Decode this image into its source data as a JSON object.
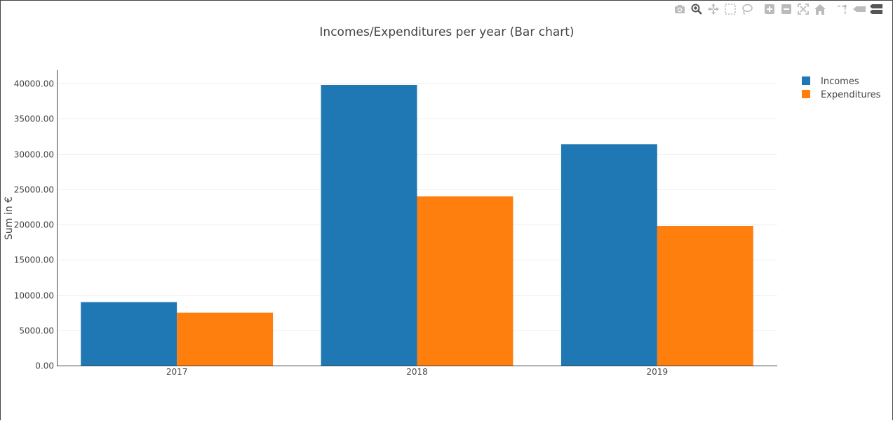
{
  "chart_data": {
    "type": "bar",
    "title": "Incomes/Expenditures per year (Bar chart)",
    "xlabel": "",
    "ylabel": "Sum in €",
    "categories": [
      "2017",
      "2018",
      "2019"
    ],
    "series": [
      {
        "name": "Incomes",
        "color": "#1f77b4",
        "values": [
          9000,
          39800,
          31400
        ]
      },
      {
        "name": "Expenditures",
        "color": "#ff7f0e",
        "values": [
          7500,
          24000,
          19800
        ]
      }
    ],
    "ylim": [
      0,
      42000
    ],
    "yticks": [
      0,
      5000,
      10000,
      15000,
      20000,
      25000,
      30000,
      35000,
      40000
    ],
    "ytick_labels": [
      "0.00",
      "5000.00",
      "10000.00",
      "15000.00",
      "20000.00",
      "25000.00",
      "30000.00",
      "35000.00",
      "40000.00"
    ],
    "grid": true,
    "legend_position": "top-right"
  },
  "modebar": [
    {
      "icon": "camera-icon"
    },
    {
      "icon": "zoom-icon"
    },
    {
      "icon": "pan-icon"
    },
    {
      "icon": "box-select-icon"
    },
    {
      "icon": "lasso-select-icon"
    },
    {
      "icon": "zoom-in-icon"
    },
    {
      "icon": "zoom-out-icon"
    },
    {
      "icon": "autoscale-icon"
    },
    {
      "icon": "reset-axes-icon"
    },
    {
      "icon": "spike-lines-icon"
    },
    {
      "icon": "hover-closest-icon"
    },
    {
      "icon": "hover-compare-icon"
    }
  ]
}
